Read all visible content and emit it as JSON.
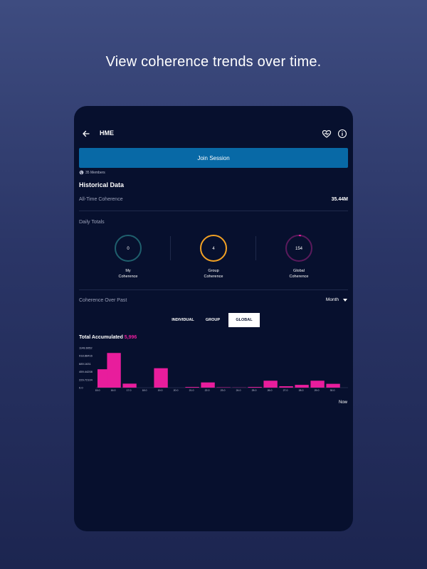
{
  "headline": "View coherence trends over time.",
  "header": {
    "title": "HME",
    "back_icon": "arrow-left-icon",
    "heart_icon": "heart-pulse-icon",
    "info_icon": "info-icon"
  },
  "join_button": "Join Session",
  "members": "35 Members",
  "historical": {
    "title": "Historical Data",
    "all_time_label": "All-Time Coherence",
    "all_time_value": "35.44M"
  },
  "daily": {
    "label": "Daily Totals",
    "rings": [
      {
        "value": "0",
        "label_line1": "My",
        "label_line2": "Coherence",
        "color": "#1f5f6d",
        "fill": 0
      },
      {
        "value": "4",
        "label_line1": "Group",
        "label_line2": "Coherence",
        "color": "#f2a124",
        "fill": 1
      },
      {
        "value": "154",
        "label_line1": "Global",
        "label_line2": "Coherence",
        "color": "#5a1a5c",
        "accent": "#e81d9c",
        "fill": 0.03
      }
    ]
  },
  "coherence_past": {
    "label": "Coherence Over Past",
    "period": "Month",
    "tabs": [
      "INDIVIDUAL",
      "GROUP",
      "GLOBAL"
    ],
    "active_tab": "GLOBAL"
  },
  "total_accumulated": {
    "label": "Total Accumulated",
    "value": "5,996"
  },
  "now_label": "Now",
  "chart_data": {
    "type": "bar",
    "color": "#e81d9c",
    "y_ticks": [
      "1148.6052",
      "918.88416",
      "689.1631",
      "459.44208",
      "229.72104",
      "0.0"
    ],
    "ylim": [
      0,
      1148.6052
    ],
    "x_ticks": [
      "15.0",
      "16.0",
      "17.0",
      "18.0",
      "19.0",
      "20.0",
      "21.0",
      "22.0",
      "23.0",
      "24.0",
      "25.0",
      "26.0",
      "27.0",
      "28.0",
      "29.0",
      "30.0"
    ],
    "categories": [
      "15.0",
      "16.0",
      "17.0",
      "18.0",
      "19.0",
      "20.0",
      "21.0",
      "22.0",
      "23.0",
      "24.0",
      "25.0",
      "26.0",
      "27.0",
      "28.0",
      "29.0",
      "30.0"
    ],
    "values": [
      530,
      1000,
      115,
      0,
      560,
      0,
      20,
      150,
      10,
      5,
      20,
      200,
      40,
      80,
      200,
      110
    ]
  }
}
